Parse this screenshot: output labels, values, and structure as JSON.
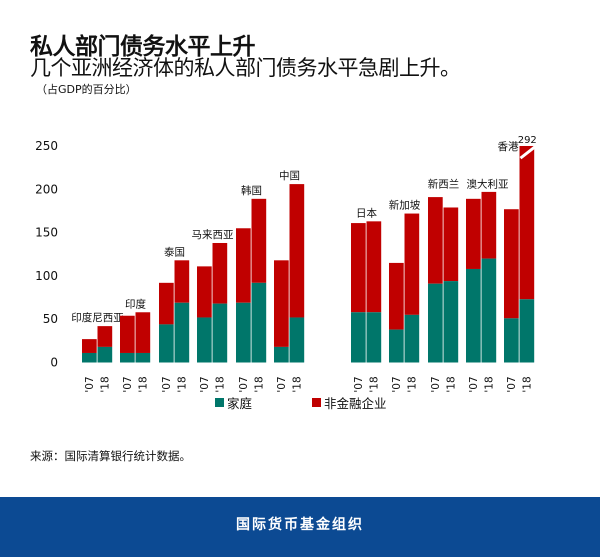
{
  "title": "私人部门债务水平上升",
  "subtitle": "几个亚洲经济体的私人部门债务水平急剧上升。",
  "note": "（占GDP的百分比）",
  "source": "来源：国际清算银行统计数据。",
  "footer": "国际货币基金组织",
  "colors": {
    "household": "#00766a",
    "corporate": "#c00000",
    "footer": "#0c4a93"
  },
  "chart_data": {
    "type": "bar",
    "stacked": true,
    "ylim": [
      0,
      250
    ],
    "yticks": [
      "0",
      "50",
      "100",
      "150",
      "200",
      "250"
    ],
    "grid": false,
    "legend_position": "bottom",
    "legend": [
      "家庭",
      "非金融企业"
    ],
    "groups": [
      {
        "name": "印度尼西亚",
        "years": [
          "'07",
          "'18"
        ],
        "household": [
          11,
          18
        ],
        "corporate": [
          16,
          24
        ]
      },
      {
        "name": "印度",
        "years": [
          "'07",
          "'18"
        ],
        "household": [
          11,
          11
        ],
        "corporate": [
          43,
          47
        ]
      },
      {
        "name": "泰国",
        "years": [
          "'07",
          "'18"
        ],
        "household": [
          44,
          69
        ],
        "corporate": [
          48,
          49
        ]
      },
      {
        "name": "马来西亚",
        "years": [
          "'07",
          "'18"
        ],
        "household": [
          52,
          68
        ],
        "corporate": [
          59,
          70
        ]
      },
      {
        "name": "韩国",
        "years": [
          "'07",
          "'18"
        ],
        "household": [
          69,
          92
        ],
        "corporate": [
          86,
          97
        ]
      },
      {
        "name": "中国",
        "years": [
          "'07",
          "'18"
        ],
        "household": [
          18,
          52
        ],
        "corporate": [
          100,
          154
        ]
      },
      {
        "name": "日本",
        "years": [
          "'07",
          "'18"
        ],
        "household": [
          58,
          58
        ],
        "corporate": [
          103,
          105
        ]
      },
      {
        "name": "新加坡",
        "years": [
          "'07",
          "'18"
        ],
        "household": [
          38,
          55
        ],
        "corporate": [
          77,
          117
        ]
      },
      {
        "name": "新西兰",
        "years": [
          "'07",
          "'18"
        ],
        "household": [
          91,
          94
        ],
        "corporate": [
          100,
          85
        ]
      },
      {
        "name": "澳大利亚",
        "years": [
          "'07",
          "'18"
        ],
        "household": [
          108,
          120
        ],
        "corporate": [
          81,
          77
        ]
      },
      {
        "name": "香港",
        "years": [
          "'07",
          "'18"
        ],
        "household": [
          51,
          73
        ],
        "corporate": [
          126,
          219
        ],
        "truncated_label": "292"
      }
    ]
  }
}
